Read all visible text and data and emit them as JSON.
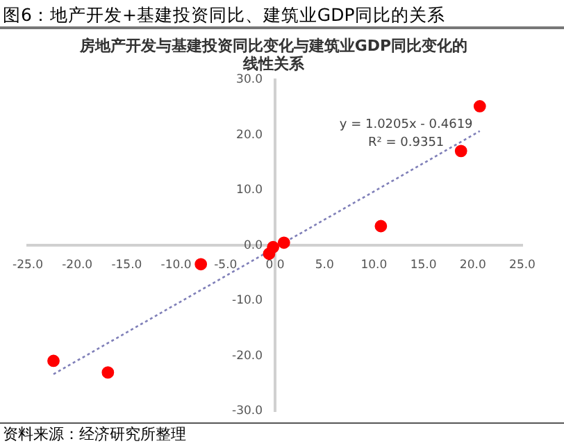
{
  "chart_data": {
    "type": "scatter",
    "title": "图6：地产开发+基建投资同比、建筑业GDP同比的关系",
    "subtitle": "房地产开发与基建投资同比变化与建筑业GDP同比变化的线性关系",
    "series": [
      {
        "type": "scatter",
        "color": "#ff0000",
        "marker": "circle",
        "x": [
          -22.4,
          -16.9,
          -7.5,
          -0.6,
          -0.2,
          0.9,
          10.7,
          18.8,
          20.7
        ],
        "values": [
          -20.9,
          -23.0,
          -3.4,
          -1.5,
          -0.3,
          0.5,
          3.5,
          17.1,
          25.2
        ]
      },
      {
        "type": "line",
        "color": "#7f7fb8",
        "marker": "none",
        "line_style": "dotted",
        "x": [
          -22.4,
          20.7
        ],
        "values": [
          -23.3,
          20.7
        ]
      }
    ],
    "xlim": [
      -25,
      25
    ],
    "xticks": [
      {
        "value": -25,
        "label": "-25.0"
      },
      {
        "value": -20,
        "label": "-20.0"
      },
      {
        "value": -15,
        "label": "-15.0"
      },
      {
        "value": -10,
        "label": "-10.0"
      },
      {
        "value": -5,
        "label": "-5.0"
      },
      {
        "value": 0,
        "label": "0.0"
      },
      {
        "value": 5,
        "label": "5.0"
      },
      {
        "value": 10,
        "label": "10.0"
      },
      {
        "value": 15,
        "label": "15.0"
      },
      {
        "value": 20,
        "label": "20.0"
      },
      {
        "value": 25,
        "label": "25.0"
      }
    ],
    "ylim": [
      -30,
      30
    ],
    "yticks": [
      {
        "value": -30,
        "label": "-30.0"
      },
      {
        "value": -20,
        "label": "-20.0"
      },
      {
        "value": -10,
        "label": "-10.0"
      },
      {
        "value": 0,
        "label": "0.0"
      },
      {
        "value": 10,
        "label": "10.0"
      },
      {
        "value": 20,
        "label": "20.0"
      },
      {
        "value": 30,
        "label": "30.0"
      }
    ],
    "grid": false,
    "legend": false,
    "annotations": [
      "y = 1.0205x - 0.4619",
      "R² = 0.9351",
      "资料来源：经济研究所整理"
    ]
  }
}
